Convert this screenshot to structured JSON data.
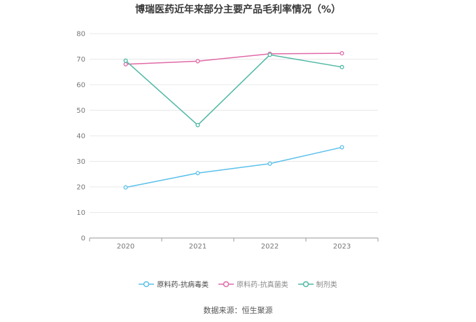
{
  "title": "博瑞医药近年来部分主要产品毛利率情况（%）",
  "source": "数据来源：恒生聚源",
  "colors": {
    "series0": "#5bc0eb",
    "series1": "#e06aa6",
    "series2": "#4fb8a4",
    "axis": "#999999",
    "grid": "#e8e8e8"
  },
  "chart_data": {
    "type": "line",
    "title": "博瑞医药近年来部分主要产品毛利率情况（%）",
    "categories": [
      "2020",
      "2021",
      "2022",
      "2023"
    ],
    "ylim": [
      0,
      80
    ],
    "yticks": [
      "0",
      "10",
      "20",
      "30",
      "40",
      "50",
      "60",
      "70",
      "80"
    ],
    "grid": true,
    "legend_position": "bottom",
    "series": [
      {
        "name": "原料药-抗病毒类",
        "values": [
          19.8,
          25.4,
          29.1,
          35.5
        ]
      },
      {
        "name": "原料药-抗真菌类",
        "values": [
          68.0,
          69.2,
          72.1,
          72.3
        ]
      },
      {
        "name": "制剂类",
        "values": [
          69.4,
          44.2,
          71.7,
          66.9
        ]
      }
    ]
  }
}
